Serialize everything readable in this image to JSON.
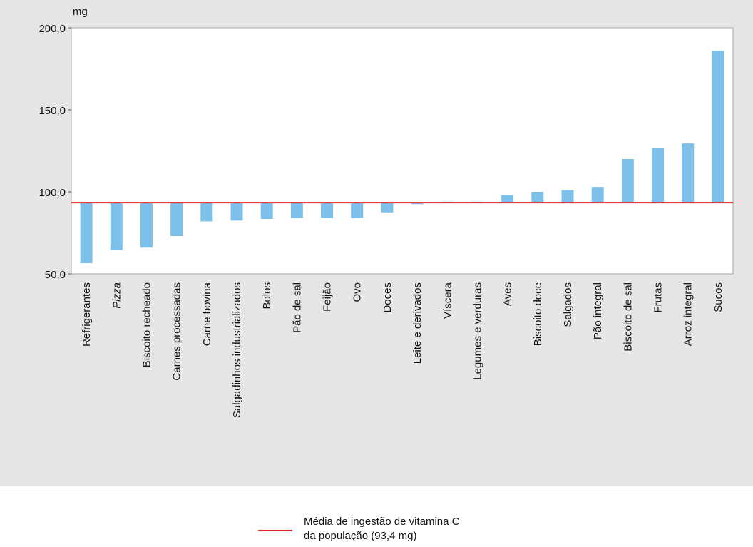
{
  "chart_data": {
    "type": "bar",
    "ylabel": "mg",
    "ylim": [
      50,
      200
    ],
    "yticks": [
      "50,0",
      "100,0",
      "150,0",
      "200,0"
    ],
    "ytick_values": [
      50,
      100,
      150,
      200
    ],
    "baseline": 93.4,
    "categories": [
      "Refrigerantes",
      "Pizza",
      "Biscoito recheado",
      "Carnes processadas",
      "Carne bovina",
      "Salgadinhos industrializados",
      "Bolos",
      "Pão de sal",
      "Feijão",
      "Ovo",
      "Doces",
      "Leite e derivados",
      "Víscera",
      "Legumes e verduras",
      "Aves",
      "Biscoito doce",
      "Salgados",
      "Pão integral",
      "Biscoito de sal",
      "Frutas",
      "Arroz integral",
      "Sucos"
    ],
    "italic_categories": [
      "Pizza"
    ],
    "values": [
      56.5,
      64.5,
      66.0,
      73.0,
      82.0,
      82.5,
      83.5,
      84.0,
      84.0,
      84.0,
      87.5,
      92.5,
      94.0,
      94.0,
      98.0,
      100.0,
      101.0,
      103.0,
      120.0,
      126.5,
      129.5,
      186.0
    ],
    "bar_color": "#7dc0ea",
    "reference_line": {
      "value": 93.4,
      "color": "#e0262a",
      "label": "Média de ingestão de vitamina C da população (93,4 mg)",
      "label_lines": [
        "Média de ingestão de vitamina C",
        "da população (93,4 mg)"
      ]
    },
    "grid": false,
    "legend_position": "bottom-center"
  }
}
